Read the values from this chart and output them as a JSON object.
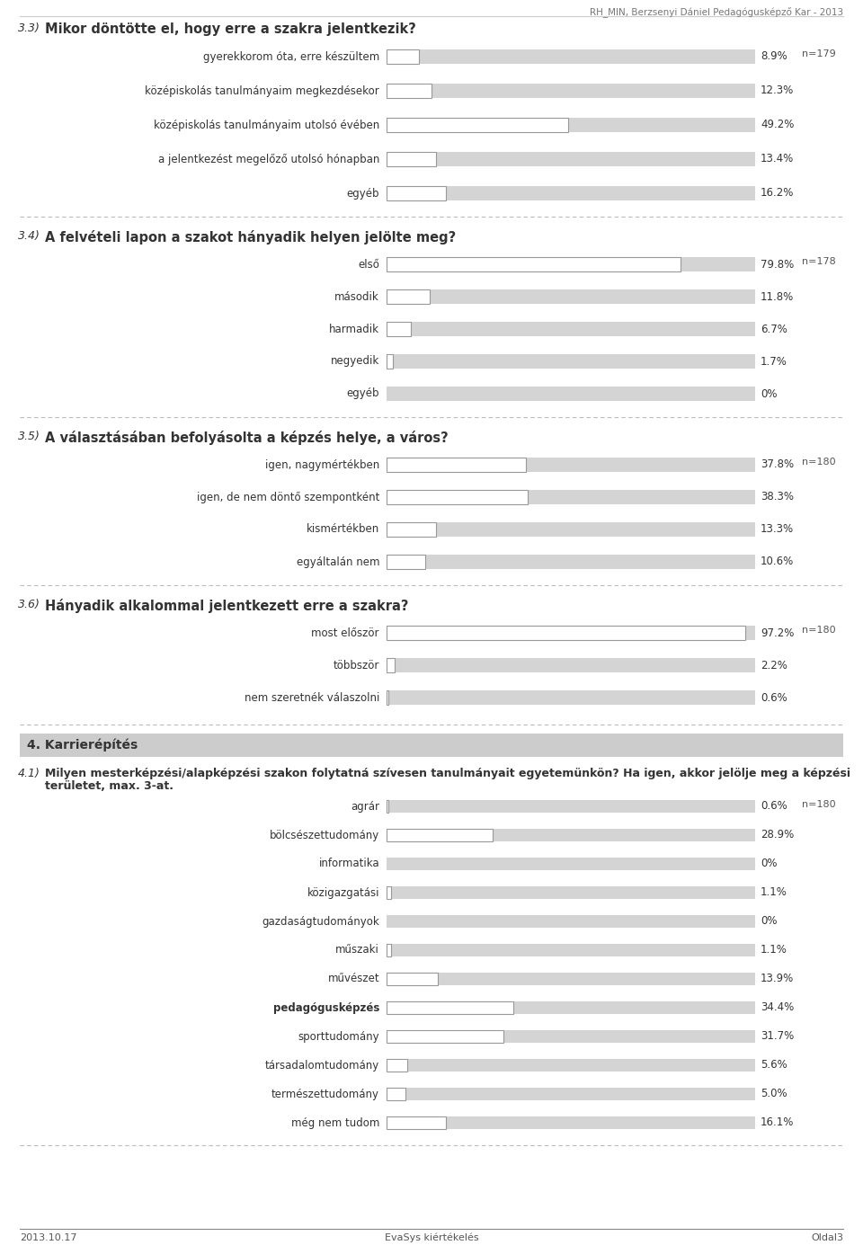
{
  "page_header": "RH_MIN, Berzsenyi Dániel Pedagógusképző Kar - 2013",
  "page_footer_left": "2013.10.17",
  "page_footer_center": "EvaSys kiértékelés",
  "page_footer_right": "Oldal3",
  "sections": [
    {
      "number": "3.3)",
      "question": "Mikor döntötte el, hogy erre a szakra jelentkezik?",
      "n_label": "n=179",
      "items": [
        {
          "label": "gyerekkorom óta, erre készültem",
          "value": 8.9
        },
        {
          "label": "középiskolás tanulmányaim megkezdésekor",
          "value": 12.3
        },
        {
          "label": "középiskolás tanulmányaim utolsó évében",
          "value": 49.2
        },
        {
          "label": "a jelentkezést megelőző utolsó hónapban",
          "value": 13.4
        },
        {
          "label": "egyéb",
          "value": 16.2
        }
      ]
    },
    {
      "number": "3.4)",
      "question": "A felvételi lapon a szakot hányadik helyen jelölte meg?",
      "n_label": "n=178",
      "items": [
        {
          "label": "első",
          "value": 79.8
        },
        {
          "label": "második",
          "value": 11.8
        },
        {
          "label": "harmadik",
          "value": 6.7
        },
        {
          "label": "negyedik",
          "value": 1.7
        },
        {
          "label": "egyéb",
          "value": 0.0
        }
      ]
    },
    {
      "number": "3.5)",
      "question": "A választásában befolyásolta a képzés helye, a város?",
      "n_label": "n=180",
      "items": [
        {
          "label": "igen, nagymértékben",
          "value": 37.8
        },
        {
          "label": "igen, de nem döntő szempontként",
          "value": 38.3
        },
        {
          "label": "kismértékben",
          "value": 13.3
        },
        {
          "label": "egyáltalán nem",
          "value": 10.6
        }
      ]
    },
    {
      "number": "3.6)",
      "question": "Hányadik alkalommal jelentkezett erre a szakra?",
      "n_label": "n=180",
      "items": [
        {
          "label": "most először",
          "value": 97.2
        },
        {
          "label": "többször",
          "value": 2.2
        },
        {
          "label": "nem szeretnék válaszolni",
          "value": 0.6
        }
      ]
    }
  ],
  "section4": {
    "header": "4. Karrierépítés",
    "number": "4.1)",
    "question_line1": "Milyen mesterképzési/alapképzési szakon folytatná szívesen tanulmányait egyetemünkön? Ha igen, akkor jelölje meg a képzési",
    "question_line2": "területet, max. 3-at.",
    "n_label": "n=180",
    "items": [
      {
        "label": "agrár",
        "value": 0.6
      },
      {
        "label": "bölcsészettudomány",
        "value": 28.9
      },
      {
        "label": "informatika",
        "value": 0.0
      },
      {
        "label": "közigazgatási",
        "value": 1.1
      },
      {
        "label": "gazdaságtudományok",
        "value": 0.0
      },
      {
        "label": "műszaki",
        "value": 1.1
      },
      {
        "label": "művészet",
        "value": 13.9
      },
      {
        "label": "pedagógusképzés",
        "value": 34.4
      },
      {
        "label": "sporttudomány",
        "value": 31.7
      },
      {
        "label": "társadalomtudomány",
        "value": 5.6
      },
      {
        "label": "természettudomány",
        "value": 5.0
      },
      {
        "label": "még nem tudom",
        "value": 16.1
      }
    ]
  },
  "bar_bg_color": "#d4d4d4",
  "bar_fg_color": "#ffffff",
  "bar_border_color": "#999999",
  "label_color": "#333333",
  "value_color": "#333333",
  "bg_color": "#ffffff",
  "separator_color": "#bbbbbb",
  "section4_header_bg": "#cccccc",
  "section4_header_text": "#333333",
  "header_line_color": "#cccccc",
  "footer_line_color": "#888888",
  "footer_text_color": "#555555",
  "n_label_color": "#555555"
}
